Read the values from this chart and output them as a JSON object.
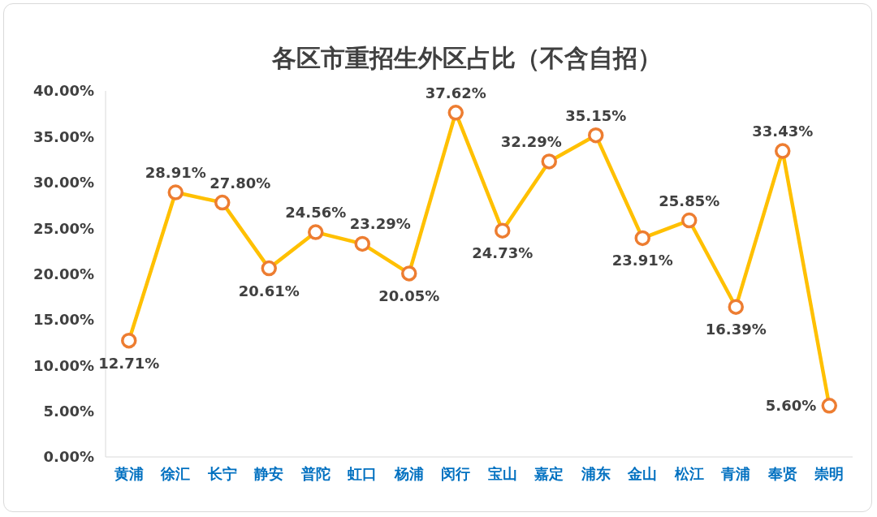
{
  "chart_data": {
    "type": "line",
    "title": "各区市重招生外区占比（不含自招）",
    "categories": [
      "黄浦",
      "徐汇",
      "长宁",
      "静安",
      "普陀",
      "虹口",
      "杨浦",
      "闵行",
      "宝山",
      "嘉定",
      "浦东",
      "金山",
      "松江",
      "青浦",
      "奉贤",
      "崇明"
    ],
    "values": [
      12.71,
      28.91,
      27.8,
      20.61,
      24.56,
      23.29,
      20.05,
      37.62,
      24.73,
      32.29,
      35.15,
      23.91,
      25.85,
      16.39,
      33.43,
      5.6
    ],
    "value_labels": [
      "12.71%",
      "28.91%",
      "27.80%",
      "20.61%",
      "24.56%",
      "23.29%",
      "20.05%",
      "37.62%",
      "24.73%",
      "32.29%",
      "35.15%",
      "23.91%",
      "25.85%",
      "16.39%",
      "33.43%",
      "5.60%"
    ],
    "color": "#ffc000",
    "marker": "circle",
    "ylim": [
      0,
      40
    ],
    "yticks": [
      {
        "value": 0,
        "label": "0.00%"
      },
      {
        "value": 5,
        "label": "5.00%"
      },
      {
        "value": 10,
        "label": "10.00%"
      },
      {
        "value": 15,
        "label": "15.00%"
      },
      {
        "value": 20,
        "label": "20.00%"
      },
      {
        "value": 25,
        "label": "25.00%"
      },
      {
        "value": 30,
        "label": "30.00%"
      },
      {
        "value": 35,
        "label": "35.00%"
      },
      {
        "value": 40,
        "label": "40.00%"
      }
    ]
  }
}
